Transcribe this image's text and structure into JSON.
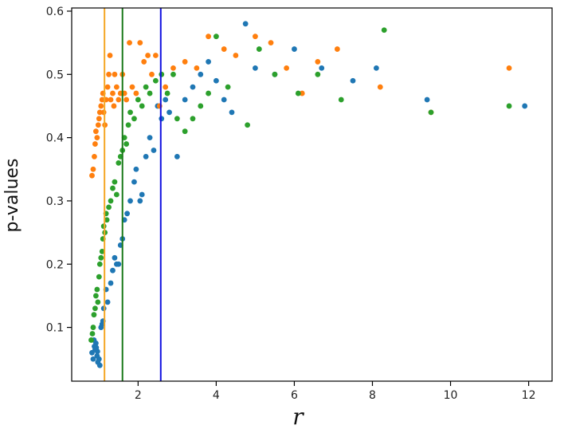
{
  "chart_data": {
    "type": "scatter",
    "title": "",
    "xlabel": "r",
    "ylabel": "p-values",
    "xlim": [
      0.3,
      12.6
    ],
    "ylim": [
      0.015,
      0.605
    ],
    "xticks": [
      2,
      4,
      6,
      8,
      10,
      12
    ],
    "yticks": [
      0.1,
      0.2,
      0.3,
      0.4,
      0.5,
      0.6
    ],
    "xtick_labels": [
      "2",
      "4",
      "6",
      "8",
      "10",
      "12"
    ],
    "ytick_labels": [
      "0.1",
      "0.2",
      "0.3",
      "0.4",
      "0.5",
      "0.6"
    ],
    "grid": false,
    "legend": "none",
    "vlines": [
      {
        "x": 1.14,
        "color": "#f5a623"
      },
      {
        "x": 1.6,
        "color": "#1a7a1a"
      },
      {
        "x": 2.58,
        "color": "#1010e0"
      }
    ],
    "series": [
      {
        "color": "#1f77b4",
        "points": [
          [
            0.82,
            0.06
          ],
          [
            0.85,
            0.05
          ],
          [
            0.88,
            0.07
          ],
          [
            0.9,
            0.065
          ],
          [
            0.92,
            0.075
          ],
          [
            0.95,
            0.055
          ],
          [
            0.97,
            0.045
          ],
          [
            0.87,
            0.08
          ],
          [
            0.93,
            0.068
          ],
          [
            0.96,
            0.062
          ],
          [
            1.0,
            0.05
          ],
          [
            1.02,
            0.04
          ],
          [
            1.05,
            0.1
          ],
          [
            1.08,
            0.105
          ],
          [
            1.1,
            0.11
          ],
          [
            1.12,
            0.13
          ],
          [
            1.18,
            0.16
          ],
          [
            1.22,
            0.14
          ],
          [
            1.3,
            0.17
          ],
          [
            1.35,
            0.19
          ],
          [
            1.4,
            0.21
          ],
          [
            1.45,
            0.2
          ],
          [
            1.5,
            0.2
          ],
          [
            1.55,
            0.23
          ],
          [
            1.6,
            0.24
          ],
          [
            1.65,
            0.27
          ],
          [
            1.72,
            0.28
          ],
          [
            1.8,
            0.3
          ],
          [
            1.9,
            0.33
          ],
          [
            1.95,
            0.35
          ],
          [
            2.05,
            0.3
          ],
          [
            2.1,
            0.31
          ],
          [
            2.2,
            0.37
          ],
          [
            2.3,
            0.4
          ],
          [
            2.4,
            0.38
          ],
          [
            2.5,
            0.45
          ],
          [
            2.6,
            0.43
          ],
          [
            2.7,
            0.46
          ],
          [
            2.8,
            0.44
          ],
          [
            3.0,
            0.37
          ],
          [
            3.2,
            0.46
          ],
          [
            3.4,
            0.48
          ],
          [
            3.6,
            0.5
          ],
          [
            3.8,
            0.52
          ],
          [
            4.0,
            0.49
          ],
          [
            4.2,
            0.46
          ],
          [
            4.4,
            0.44
          ],
          [
            4.75,
            0.58
          ],
          [
            5.0,
            0.51
          ],
          [
            5.5,
            0.5
          ],
          [
            6.0,
            0.54
          ],
          [
            6.7,
            0.51
          ],
          [
            7.5,
            0.49
          ],
          [
            8.1,
            0.51
          ],
          [
            9.4,
            0.46
          ],
          [
            11.9,
            0.45
          ]
        ]
      },
      {
        "color": "#ff7f0e",
        "points": [
          [
            0.82,
            0.34
          ],
          [
            0.85,
            0.35
          ],
          [
            0.88,
            0.37
          ],
          [
            0.9,
            0.39
          ],
          [
            0.92,
            0.41
          ],
          [
            0.95,
            0.4
          ],
          [
            0.98,
            0.42
          ],
          [
            1.0,
            0.43
          ],
          [
            1.02,
            0.44
          ],
          [
            1.05,
            0.45
          ],
          [
            1.08,
            0.46
          ],
          [
            1.1,
            0.47
          ],
          [
            1.12,
            0.44
          ],
          [
            1.15,
            0.42
          ],
          [
            1.18,
            0.46
          ],
          [
            1.22,
            0.48
          ],
          [
            1.25,
            0.5
          ],
          [
            1.28,
            0.53
          ],
          [
            1.3,
            0.46
          ],
          [
            1.35,
            0.47
          ],
          [
            1.38,
            0.45
          ],
          [
            1.4,
            0.5
          ],
          [
            1.45,
            0.48
          ],
          [
            1.5,
            0.46
          ],
          [
            1.55,
            0.47
          ],
          [
            1.6,
            0.5
          ],
          [
            1.65,
            0.47
          ],
          [
            1.7,
            0.46
          ],
          [
            1.78,
            0.55
          ],
          [
            1.85,
            0.48
          ],
          [
            1.95,
            0.47
          ],
          [
            2.05,
            0.55
          ],
          [
            2.15,
            0.52
          ],
          [
            2.25,
            0.53
          ],
          [
            2.35,
            0.5
          ],
          [
            2.45,
            0.53
          ],
          [
            2.55,
            0.45
          ],
          [
            2.7,
            0.48
          ],
          [
            2.9,
            0.51
          ],
          [
            3.2,
            0.52
          ],
          [
            3.5,
            0.51
          ],
          [
            3.8,
            0.56
          ],
          [
            4.2,
            0.54
          ],
          [
            4.5,
            0.53
          ],
          [
            5.0,
            0.56
          ],
          [
            5.4,
            0.55
          ],
          [
            5.8,
            0.51
          ],
          [
            6.2,
            0.47
          ],
          [
            6.6,
            0.52
          ],
          [
            7.1,
            0.54
          ],
          [
            8.2,
            0.48
          ],
          [
            9.5,
            0.44
          ],
          [
            11.5,
            0.51
          ]
        ]
      },
      {
        "color": "#2ca02c",
        "points": [
          [
            0.8,
            0.08
          ],
          [
            0.83,
            0.09
          ],
          [
            0.85,
            0.1
          ],
          [
            0.87,
            0.12
          ],
          [
            0.9,
            0.13
          ],
          [
            0.92,
            0.15
          ],
          [
            0.95,
            0.16
          ],
          [
            0.97,
            0.14
          ],
          [
            1.0,
            0.18
          ],
          [
            1.02,
            0.2
          ],
          [
            1.05,
            0.21
          ],
          [
            1.08,
            0.22
          ],
          [
            1.1,
            0.24
          ],
          [
            1.12,
            0.26
          ],
          [
            1.15,
            0.25
          ],
          [
            1.18,
            0.28
          ],
          [
            1.2,
            0.27
          ],
          [
            1.25,
            0.29
          ],
          [
            1.3,
            0.3
          ],
          [
            1.35,
            0.32
          ],
          [
            1.4,
            0.33
          ],
          [
            1.45,
            0.31
          ],
          [
            1.5,
            0.36
          ],
          [
            1.55,
            0.37
          ],
          [
            1.6,
            0.38
          ],
          [
            1.65,
            0.4
          ],
          [
            1.7,
            0.39
          ],
          [
            1.75,
            0.42
          ],
          [
            1.8,
            0.44
          ],
          [
            1.9,
            0.43
          ],
          [
            2.0,
            0.46
          ],
          [
            2.1,
            0.45
          ],
          [
            2.2,
            0.48
          ],
          [
            2.3,
            0.47
          ],
          [
            2.45,
            0.49
          ],
          [
            2.6,
            0.5
          ],
          [
            2.75,
            0.47
          ],
          [
            2.9,
            0.5
          ],
          [
            3.0,
            0.43
          ],
          [
            3.2,
            0.41
          ],
          [
            3.4,
            0.43
          ],
          [
            3.6,
            0.45
          ],
          [
            3.8,
            0.47
          ],
          [
            4.0,
            0.56
          ],
          [
            4.3,
            0.48
          ],
          [
            4.8,
            0.42
          ],
          [
            5.1,
            0.54
          ],
          [
            5.5,
            0.5
          ],
          [
            6.1,
            0.47
          ],
          [
            6.6,
            0.5
          ],
          [
            7.2,
            0.46
          ],
          [
            8.3,
            0.57
          ],
          [
            9.5,
            0.44
          ],
          [
            11.5,
            0.45
          ]
        ]
      }
    ]
  }
}
